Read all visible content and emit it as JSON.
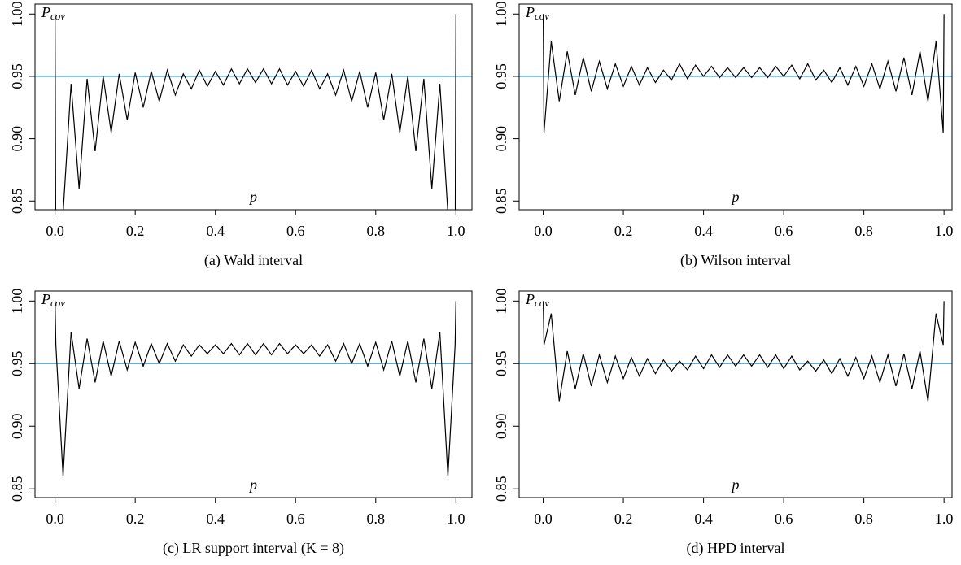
{
  "chart_data": [
    {
      "type": "line",
      "title": "(a) Wald interval",
      "xlabel": "p",
      "ylabel": "P",
      "ylabel_sub": "cov",
      "x": [
        0,
        0.002,
        0.02,
        0.04,
        0.06,
        0.08,
        0.1,
        0.12,
        0.14,
        0.16,
        0.18,
        0.2,
        0.22,
        0.24,
        0.26,
        0.28,
        0.3,
        0.32,
        0.34,
        0.36,
        0.38,
        0.4,
        0.42,
        0.44,
        0.46,
        0.48,
        0.5,
        0.52,
        0.54,
        0.56,
        0.58,
        0.6,
        0.62,
        0.64,
        0.66,
        0.68,
        0.7,
        0.72,
        0.74,
        0.76,
        0.78,
        0.8,
        0.82,
        0.84,
        0.86,
        0.88,
        0.9,
        0.92,
        0.94,
        0.96,
        0.98,
        0.998,
        1
      ],
      "series": [
        {
          "color": "#000000",
          "values": [
            1.0,
            0.8,
            0.84,
            0.944,
            0.86,
            0.948,
            0.89,
            0.95,
            0.905,
            0.952,
            0.915,
            0.953,
            0.925,
            0.954,
            0.93,
            0.955,
            0.935,
            0.952,
            0.94,
            0.955,
            0.942,
            0.954,
            0.943,
            0.956,
            0.944,
            0.956,
            0.945,
            0.956,
            0.944,
            0.956,
            0.943,
            0.954,
            0.942,
            0.955,
            0.94,
            0.952,
            0.935,
            0.955,
            0.93,
            0.954,
            0.925,
            0.953,
            0.915,
            0.952,
            0.905,
            0.95,
            0.89,
            0.948,
            0.86,
            0.944,
            0.84,
            0.8,
            1.0
          ]
        }
      ],
      "hline": {
        "value": 0.95,
        "color": "#3fa7d6"
      },
      "xlim": [
        -0.05,
        1.04
      ],
      "ylim": [
        0.843,
        1.008
      ],
      "xticks": [
        {
          "value": 0,
          "label": "0.0"
        },
        0.2,
        0.4,
        0.6,
        0.8,
        {
          "value": 1,
          "label": "1.0"
        }
      ],
      "yticks": [
        0.85,
        {
          "value": 0.9,
          "label": "0.90"
        },
        0.95,
        {
          "value": 1,
          "label": "1.00"
        }
      ]
    },
    {
      "type": "line",
      "title": "(b) Wilson interval",
      "xlabel": "p",
      "ylabel": "P",
      "ylabel_sub": "cov",
      "x": [
        0,
        0.002,
        0.02,
        0.04,
        0.06,
        0.08,
        0.1,
        0.12,
        0.14,
        0.16,
        0.18,
        0.2,
        0.22,
        0.24,
        0.26,
        0.28,
        0.3,
        0.32,
        0.34,
        0.36,
        0.38,
        0.4,
        0.42,
        0.44,
        0.46,
        0.48,
        0.5,
        0.52,
        0.54,
        0.56,
        0.58,
        0.6,
        0.62,
        0.64,
        0.66,
        0.68,
        0.7,
        0.72,
        0.74,
        0.76,
        0.78,
        0.8,
        0.82,
        0.84,
        0.86,
        0.88,
        0.9,
        0.92,
        0.94,
        0.96,
        0.98,
        0.998,
        1
      ],
      "series": [
        {
          "color": "#000000",
          "values": [
            1.0,
            0.905,
            0.978,
            0.93,
            0.97,
            0.935,
            0.965,
            0.938,
            0.962,
            0.94,
            0.96,
            0.942,
            0.958,
            0.943,
            0.957,
            0.945,
            0.955,
            0.947,
            0.96,
            0.948,
            0.959,
            0.95,
            0.958,
            0.949,
            0.957,
            0.949,
            0.957,
            0.949,
            0.957,
            0.949,
            0.958,
            0.95,
            0.959,
            0.948,
            0.96,
            0.947,
            0.955,
            0.945,
            0.957,
            0.943,
            0.958,
            0.942,
            0.96,
            0.94,
            0.962,
            0.938,
            0.965,
            0.935,
            0.97,
            0.93,
            0.978,
            0.905,
            1.0
          ]
        }
      ],
      "hline": {
        "value": 0.95,
        "color": "#3fa7d6"
      },
      "xlim": [
        -0.06,
        1.02
      ],
      "ylim": [
        0.843,
        1.008
      ],
      "xticks": [
        {
          "value": 0,
          "label": "0.0"
        },
        0.2,
        0.4,
        0.6,
        0.8,
        {
          "value": 1,
          "label": "1.0"
        }
      ],
      "yticks": [
        0.85,
        {
          "value": 0.9,
          "label": "0.90"
        },
        0.95,
        {
          "value": 1,
          "label": "1.00"
        }
      ]
    },
    {
      "type": "line",
      "title": "(c) LR support interval (K = 8)",
      "xlabel": "p",
      "ylabel": "P",
      "ylabel_sub": "cov",
      "x": [
        0,
        0.002,
        0.02,
        0.04,
        0.06,
        0.08,
        0.1,
        0.12,
        0.14,
        0.16,
        0.18,
        0.2,
        0.22,
        0.24,
        0.26,
        0.28,
        0.3,
        0.32,
        0.34,
        0.36,
        0.38,
        0.4,
        0.42,
        0.44,
        0.46,
        0.48,
        0.5,
        0.52,
        0.54,
        0.56,
        0.58,
        0.6,
        0.62,
        0.64,
        0.66,
        0.68,
        0.7,
        0.72,
        0.74,
        0.76,
        0.78,
        0.8,
        0.82,
        0.84,
        0.86,
        0.88,
        0.9,
        0.92,
        0.94,
        0.96,
        0.98,
        0.998,
        1
      ],
      "series": [
        {
          "color": "#000000",
          "values": [
            1.0,
            0.965,
            0.86,
            0.975,
            0.93,
            0.97,
            0.935,
            0.968,
            0.94,
            0.968,
            0.945,
            0.967,
            0.948,
            0.966,
            0.95,
            0.966,
            0.952,
            0.965,
            0.956,
            0.965,
            0.958,
            0.965,
            0.958,
            0.966,
            0.957,
            0.966,
            0.957,
            0.966,
            0.957,
            0.966,
            0.958,
            0.965,
            0.958,
            0.965,
            0.956,
            0.965,
            0.952,
            0.966,
            0.95,
            0.966,
            0.948,
            0.967,
            0.945,
            0.968,
            0.94,
            0.968,
            0.935,
            0.97,
            0.93,
            0.975,
            0.86,
            0.965,
            1.0
          ]
        }
      ],
      "hline": {
        "value": 0.95,
        "color": "#3fa7d6"
      },
      "xlim": [
        -0.05,
        1.04
      ],
      "ylim": [
        0.843,
        1.008
      ],
      "xticks": [
        {
          "value": 0,
          "label": "0.0"
        },
        0.2,
        0.4,
        0.6,
        0.8,
        {
          "value": 1,
          "label": "1.0"
        }
      ],
      "yticks": [
        0.85,
        {
          "value": 0.9,
          "label": "0.90"
        },
        0.95,
        {
          "value": 1,
          "label": "1.00"
        }
      ]
    },
    {
      "type": "line",
      "title": "(d) HPD interval",
      "xlabel": "p",
      "ylabel": "P",
      "ylabel_sub": "cov",
      "x": [
        0,
        0.002,
        0.02,
        0.04,
        0.06,
        0.08,
        0.1,
        0.12,
        0.14,
        0.16,
        0.18,
        0.2,
        0.22,
        0.24,
        0.26,
        0.28,
        0.3,
        0.32,
        0.34,
        0.36,
        0.38,
        0.4,
        0.42,
        0.44,
        0.46,
        0.48,
        0.5,
        0.52,
        0.54,
        0.56,
        0.58,
        0.6,
        0.62,
        0.64,
        0.66,
        0.68,
        0.7,
        0.72,
        0.74,
        0.76,
        0.78,
        0.8,
        0.82,
        0.84,
        0.86,
        0.88,
        0.9,
        0.92,
        0.94,
        0.96,
        0.98,
        0.998,
        1
      ],
      "series": [
        {
          "color": "#000000",
          "values": [
            1.0,
            0.965,
            0.99,
            0.92,
            0.96,
            0.93,
            0.958,
            0.932,
            0.957,
            0.935,
            0.956,
            0.938,
            0.955,
            0.94,
            0.954,
            0.942,
            0.953,
            0.944,
            0.952,
            0.945,
            0.956,
            0.946,
            0.957,
            0.947,
            0.957,
            0.948,
            0.957,
            0.948,
            0.957,
            0.947,
            0.957,
            0.946,
            0.956,
            0.945,
            0.952,
            0.944,
            0.953,
            0.942,
            0.954,
            0.94,
            0.955,
            0.938,
            0.956,
            0.935,
            0.957,
            0.932,
            0.958,
            0.93,
            0.96,
            0.92,
            0.99,
            0.965,
            1.0
          ]
        }
      ],
      "hline": {
        "value": 0.95,
        "color": "#3fa7d6"
      },
      "xlim": [
        -0.06,
        1.02
      ],
      "ylim": [
        0.843,
        1.008
      ],
      "xticks": [
        {
          "value": 0,
          "label": "0.0"
        },
        0.2,
        0.4,
        0.6,
        0.8,
        {
          "value": 1,
          "label": "1.0"
        }
      ],
      "yticks": [
        0.85,
        {
          "value": 0.9,
          "label": "0.90"
        },
        0.95,
        {
          "value": 1,
          "label": "1.00"
        }
      ]
    }
  ]
}
